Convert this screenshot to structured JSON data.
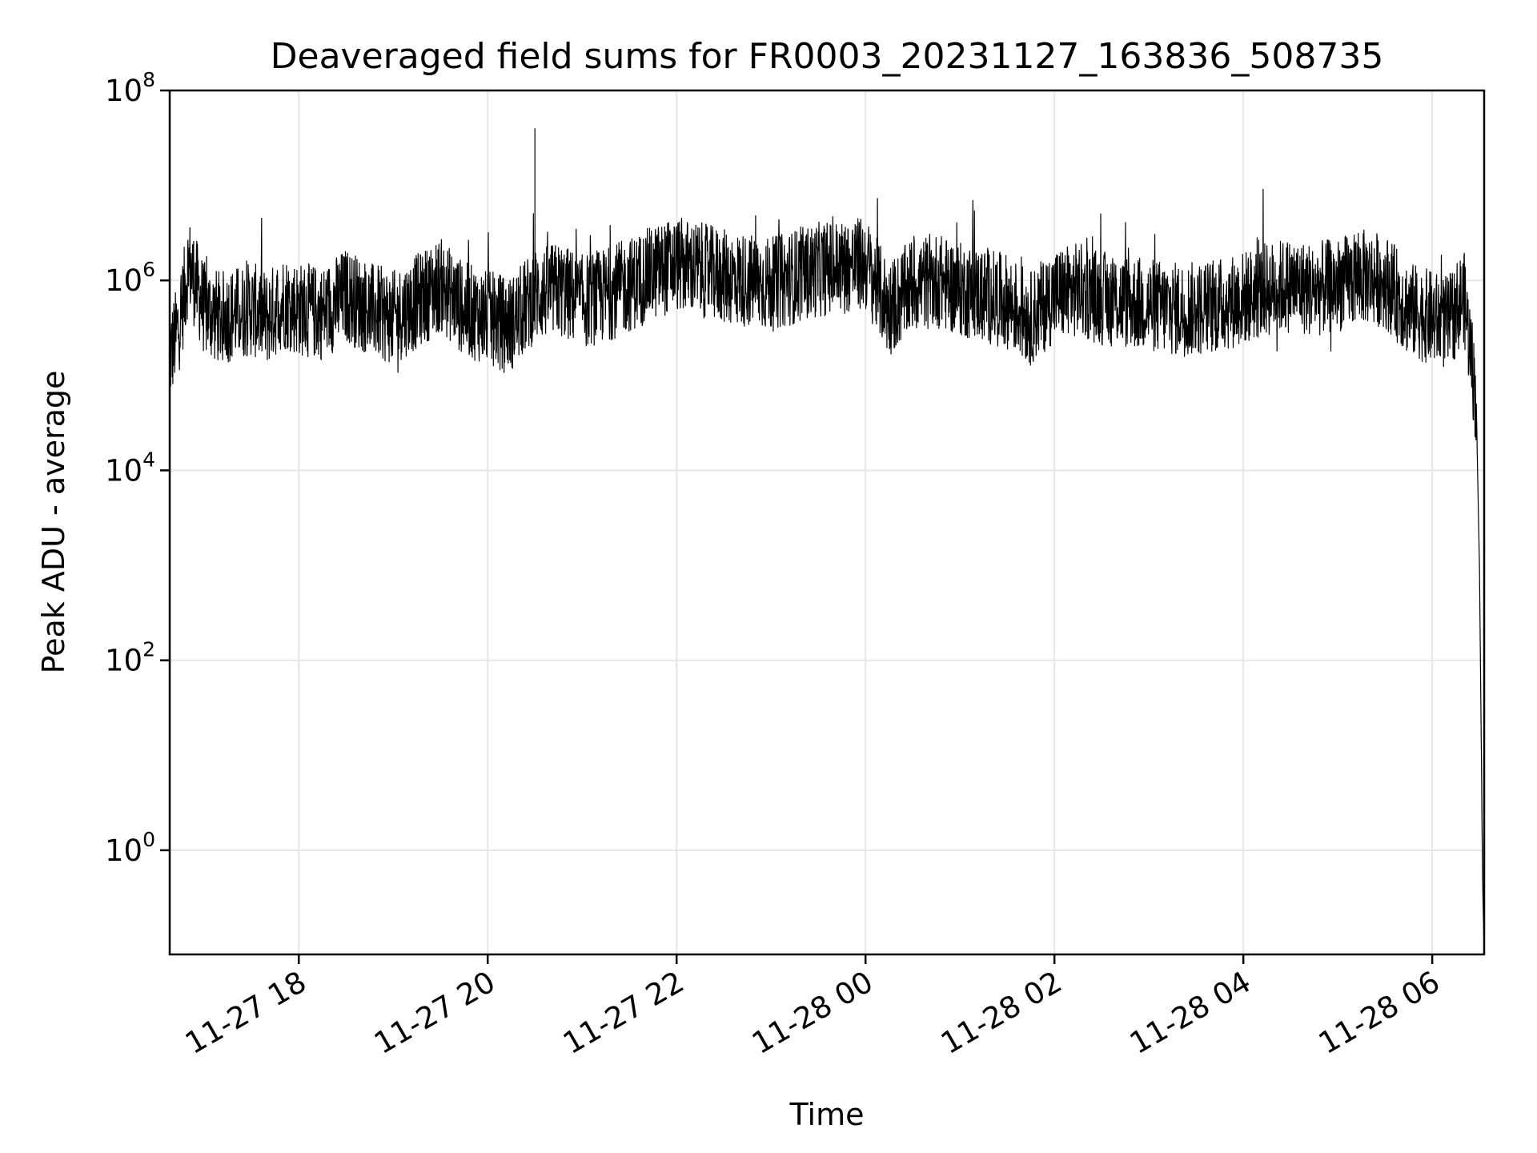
{
  "chart_data": {
    "type": "line",
    "title": "Deaveraged field sums for FR0003_20231127_163836_508735",
    "xlabel": "Time",
    "ylabel": "Peak ADU - average",
    "yscale": "log",
    "grid": true,
    "x_ticks": [
      {
        "value": "2023-11-27T18:00",
        "label": "11-27 18"
      },
      {
        "value": "2023-11-27T20:00",
        "label": "11-27 20"
      },
      {
        "value": "2023-11-27T22:00",
        "label": "11-27 22"
      },
      {
        "value": "2023-11-28T00:00",
        "label": "11-28 00"
      },
      {
        "value": "2023-11-28T02:00",
        "label": "11-28 02"
      },
      {
        "value": "2023-11-28T04:00",
        "label": "11-28 04"
      },
      {
        "value": "2023-11-28T06:00",
        "label": "11-28 06"
      }
    ],
    "y_ticks": [
      {
        "value": 1,
        "base": "10",
        "exp": "0"
      },
      {
        "value": 100,
        "base": "10",
        "exp": "2"
      },
      {
        "value": 10000,
        "base": "10",
        "exp": "4"
      },
      {
        "value": 1000000,
        "base": "10",
        "exp": "6"
      },
      {
        "value": 100000000,
        "base": "10",
        "exp": "8"
      }
    ],
    "xlim": [
      "2023-11-27T16:38",
      "2023-11-28T06:33"
    ],
    "ylim": [
      0.08,
      100000000
    ],
    "series": [
      {
        "color": "#000000",
        "x": [
          "2023-11-27T16:38",
          "2023-11-27T16:40",
          "2023-11-27T16:45",
          "2023-11-27T16:50",
          "2023-11-27T17:00",
          "2023-11-27T17:10",
          "2023-11-27T17:20",
          "2023-11-27T17:30",
          "2023-11-27T17:40",
          "2023-11-27T17:50",
          "2023-11-27T18:00",
          "2023-11-27T18:15",
          "2023-11-27T18:30",
          "2023-11-27T18:45",
          "2023-11-27T19:00",
          "2023-11-27T19:15",
          "2023-11-27T19:30",
          "2023-11-27T19:45",
          "2023-11-27T20:00",
          "2023-11-27T20:15",
          "2023-11-27T20:30",
          "2023-11-27T20:45",
          "2023-11-27T21:00",
          "2023-11-27T21:15",
          "2023-11-27T21:30",
          "2023-11-27T21:45",
          "2023-11-27T22:00",
          "2023-11-27T22:15",
          "2023-11-27T22:30",
          "2023-11-27T22:45",
          "2023-11-27T23:00",
          "2023-11-27T23:15",
          "2023-11-27T23:30",
          "2023-11-27T23:45",
          "2023-11-28T00:00",
          "2023-11-28T00:15",
          "2023-11-28T00:30",
          "2023-11-28T00:45",
          "2023-11-28T01:00",
          "2023-11-28T01:15",
          "2023-11-28T01:30",
          "2023-11-28T01:45",
          "2023-11-28T02:00",
          "2023-11-28T02:15",
          "2023-11-28T02:30",
          "2023-11-28T02:45",
          "2023-11-28T03:00",
          "2023-11-28T03:15",
          "2023-11-28T03:30",
          "2023-11-28T03:45",
          "2023-11-28T04:00",
          "2023-11-28T04:15",
          "2023-11-28T04:30",
          "2023-11-28T04:45",
          "2023-11-28T05:00",
          "2023-11-28T05:15",
          "2023-11-28T05:30",
          "2023-11-28T05:45",
          "2023-11-28T06:00",
          "2023-11-28T06:10",
          "2023-11-28T06:20",
          "2023-11-28T06:25",
          "2023-11-28T06:28",
          "2023-11-28T06:30",
          "2023-11-28T06:32",
          "2023-11-28T06:33"
        ],
        "y": [
          150000,
          200000,
          400000,
          1500000,
          500000,
          400000,
          450000,
          500000,
          400000,
          600000,
          500000,
          450000,
          700000,
          500000,
          400000,
          600000,
          900000,
          500000,
          400000,
          350000,
          700000,
          800000,
          600000,
          700000,
          900000,
          1200000,
          1500000,
          1300000,
          1100000,
          1000000,
          900000,
          1100000,
          1300000,
          1400000,
          1500000,
          500000,
          900000,
          1000000,
          800000,
          700000,
          600000,
          400000,
          700000,
          800000,
          650000,
          600000,
          550000,
          500000,
          500000,
          550000,
          650000,
          800000,
          900000,
          800000,
          900000,
          1100000,
          1000000,
          500000,
          400000,
          350000,
          700000,
          150000,
          50000,
          1000,
          0.5,
          0.08
        ]
      }
    ],
    "annotations": [
      {
        "x": "2023-11-27T20:30",
        "y": 40000000,
        "kind": "spike"
      }
    ]
  }
}
